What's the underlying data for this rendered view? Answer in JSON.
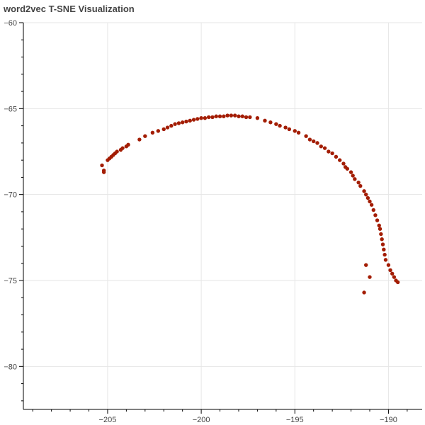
{
  "chart_data": {
    "type": "scatter",
    "title": "word2vec T-SNE Visualization",
    "xlabel": "",
    "ylabel": "",
    "xlim": [
      -209.5,
      -188.2
    ],
    "ylim": [
      -82.5,
      -60
    ],
    "xticks": [
      -205,
      -200,
      -195,
      -190
    ],
    "yticks": [
      -60,
      -65,
      -70,
      -75,
      -80
    ],
    "x_tick_labels": [
      "−205",
      "−200",
      "−195",
      "−190"
    ],
    "y_tick_labels": [
      "−60",
      "−65",
      "−70",
      "−75",
      "−80"
    ],
    "grid": true,
    "marker_color": "#a31d04",
    "series": [
      {
        "points": [
          [
            -205.3,
            -68.3
          ],
          [
            -205.2,
            -68.6
          ],
          [
            -205.2,
            -68.7
          ],
          [
            -205.0,
            -68.0
          ],
          [
            -204.9,
            -67.9
          ],
          [
            -204.8,
            -67.8
          ],
          [
            -204.7,
            -67.7
          ],
          [
            -204.6,
            -67.6
          ],
          [
            -204.5,
            -67.5
          ],
          [
            -204.3,
            -67.4
          ],
          [
            -204.2,
            -67.3
          ],
          [
            -204.0,
            -67.2
          ],
          [
            -203.9,
            -67.1
          ],
          [
            -203.3,
            -66.8
          ],
          [
            -203.0,
            -66.6
          ],
          [
            -202.6,
            -66.4
          ],
          [
            -202.3,
            -66.3
          ],
          [
            -202.0,
            -66.2
          ],
          [
            -201.8,
            -66.1
          ],
          [
            -201.6,
            -66.0
          ],
          [
            -201.4,
            -65.9
          ],
          [
            -201.2,
            -65.85
          ],
          [
            -201.0,
            -65.8
          ],
          [
            -200.8,
            -65.75
          ],
          [
            -200.6,
            -65.7
          ],
          [
            -200.4,
            -65.65
          ],
          [
            -200.2,
            -65.6
          ],
          [
            -200.0,
            -65.55
          ],
          [
            -199.8,
            -65.55
          ],
          [
            -199.6,
            -65.5
          ],
          [
            -199.4,
            -65.5
          ],
          [
            -199.2,
            -65.45
          ],
          [
            -199.0,
            -65.45
          ],
          [
            -198.8,
            -65.45
          ],
          [
            -198.6,
            -65.4
          ],
          [
            -198.4,
            -65.4
          ],
          [
            -198.2,
            -65.4
          ],
          [
            -198.0,
            -65.45
          ],
          [
            -197.8,
            -65.45
          ],
          [
            -197.6,
            -65.5
          ],
          [
            -197.4,
            -65.5
          ],
          [
            -197.0,
            -65.55
          ],
          [
            -196.6,
            -65.7
          ],
          [
            -196.3,
            -65.8
          ],
          [
            -196.0,
            -65.9
          ],
          [
            -195.8,
            -66.0
          ],
          [
            -195.5,
            -66.1
          ],
          [
            -195.3,
            -66.2
          ],
          [
            -195.0,
            -66.3
          ],
          [
            -194.8,
            -66.4
          ],
          [
            -194.4,
            -66.6
          ],
          [
            -194.2,
            -66.8
          ],
          [
            -194.0,
            -66.9
          ],
          [
            -193.8,
            -67.0
          ],
          [
            -193.6,
            -67.2
          ],
          [
            -193.4,
            -67.3
          ],
          [
            -193.2,
            -67.5
          ],
          [
            -193.0,
            -67.6
          ],
          [
            -192.8,
            -67.8
          ],
          [
            -192.6,
            -68.0
          ],
          [
            -192.4,
            -68.2
          ],
          [
            -192.3,
            -68.4
          ],
          [
            -192.2,
            -68.5
          ],
          [
            -192.0,
            -68.7
          ],
          [
            -191.9,
            -68.9
          ],
          [
            -191.8,
            -69.1
          ],
          [
            -191.6,
            -69.3
          ],
          [
            -191.5,
            -69.5
          ],
          [
            -191.3,
            -69.8
          ],
          [
            -191.2,
            -70.0
          ],
          [
            -191.1,
            -70.2
          ],
          [
            -191.0,
            -70.4
          ],
          [
            -190.9,
            -70.6
          ],
          [
            -190.8,
            -70.9
          ],
          [
            -190.7,
            -71.2
          ],
          [
            -190.6,
            -71.5
          ],
          [
            -190.5,
            -71.8
          ],
          [
            -190.45,
            -72.0
          ],
          [
            -190.4,
            -72.3
          ],
          [
            -190.35,
            -72.6
          ],
          [
            -190.3,
            -72.9
          ],
          [
            -190.25,
            -73.2
          ],
          [
            -190.2,
            -73.5
          ],
          [
            -190.15,
            -73.8
          ],
          [
            -190.0,
            -74.1
          ],
          [
            -189.9,
            -74.4
          ],
          [
            -189.8,
            -74.6
          ],
          [
            -189.7,
            -74.8
          ],
          [
            -189.6,
            -75.0
          ],
          [
            -189.5,
            -75.1
          ],
          [
            -191.2,
            -74.1
          ],
          [
            -191.0,
            -74.8
          ],
          [
            -191.3,
            -75.7
          ]
        ]
      }
    ]
  }
}
